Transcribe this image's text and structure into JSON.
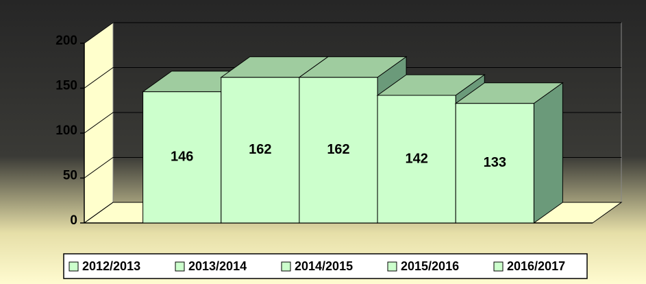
{
  "chart_data": {
    "type": "bar3d",
    "categories": [
      null
    ],
    "series": [
      {
        "name": "2012/2013",
        "color": "#ccffcc",
        "values": [
          146
        ]
      },
      {
        "name": "2013/2014",
        "color": "#ccffcc",
        "values": [
          162
        ]
      },
      {
        "name": "2014/2015",
        "color": "#ccffcc",
        "values": [
          162
        ]
      },
      {
        "name": "2015/2016",
        "color": "#ccffcc",
        "values": [
          142
        ]
      },
      {
        "name": "2016/2017",
        "color": "#ccffcc",
        "values": [
          133
        ]
      }
    ],
    "ylim": [
      0,
      200
    ],
    "yticks": [
      0,
      50,
      100,
      150,
      200
    ],
    "grid": true,
    "legend": "bottom"
  }
}
